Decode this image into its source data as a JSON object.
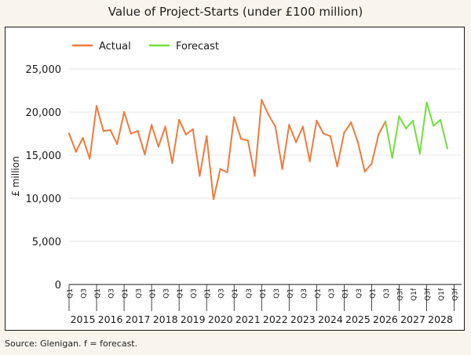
{
  "chart_data": {
    "type": "line",
    "title": "Value of Project-Starts (under £100 million)",
    "ylabel": "£ million",
    "xlabel": "",
    "ylim": [
      0,
      25000
    ],
    "yticks": [
      0,
      5000,
      10000,
      15000,
      20000,
      25000
    ],
    "ytick_labels": [
      "0",
      "5,000",
      "10,000",
      "15,000",
      "20,000",
      "25,000"
    ],
    "grid": "horizontal",
    "legend_position": "top-left",
    "quarter_labels": [
      "Q1",
      "Q3",
      "Q1",
      "Q3",
      "Q1",
      "Q3",
      "Q1",
      "Q3",
      "Q1",
      "Q3",
      "Q1",
      "Q3",
      "Q1",
      "Q3",
      "Q1",
      "Q3",
      "Q1",
      "Q3",
      "Q1",
      "Q3",
      "Q1",
      "Q3",
      "Q1",
      "Q3",
      "Q3f",
      "Q1f",
      "Q3f",
      "Q1f",
      "Q3f"
    ],
    "years": [
      "2015",
      "2016",
      "2017",
      "2018",
      "2019",
      "2020",
      "2021",
      "2022",
      "2023",
      "2024",
      "2025",
      "2026",
      "2027",
      "2028"
    ],
    "series": [
      {
        "name": "Actual",
        "color": "#f07a3a",
        "x_start": 0,
        "values": [
          17500,
          15400,
          17000,
          14600,
          20700,
          17800,
          17900,
          16300,
          20000,
          17500,
          17800,
          15100,
          18500,
          16000,
          18300,
          14100,
          19100,
          17400,
          18000,
          12600,
          17200,
          9900,
          13400,
          13000,
          19400,
          16900,
          16700,
          12600,
          21400,
          19700,
          18300,
          13400,
          18500,
          16500,
          18300,
          14300,
          19000,
          17500,
          17200,
          13700,
          17600,
          18800,
          16500,
          13100,
          14000,
          17400,
          18900
        ]
      },
      {
        "name": "Forecast",
        "color": "#6fe03a",
        "x_start": 46,
        "values": [
          18900,
          14700,
          19500,
          18100,
          19000,
          15200,
          21100,
          18400,
          19100,
          15800
        ]
      }
    ]
  },
  "footer": {
    "source": "Source: Glenigan.  f = forecast."
  }
}
